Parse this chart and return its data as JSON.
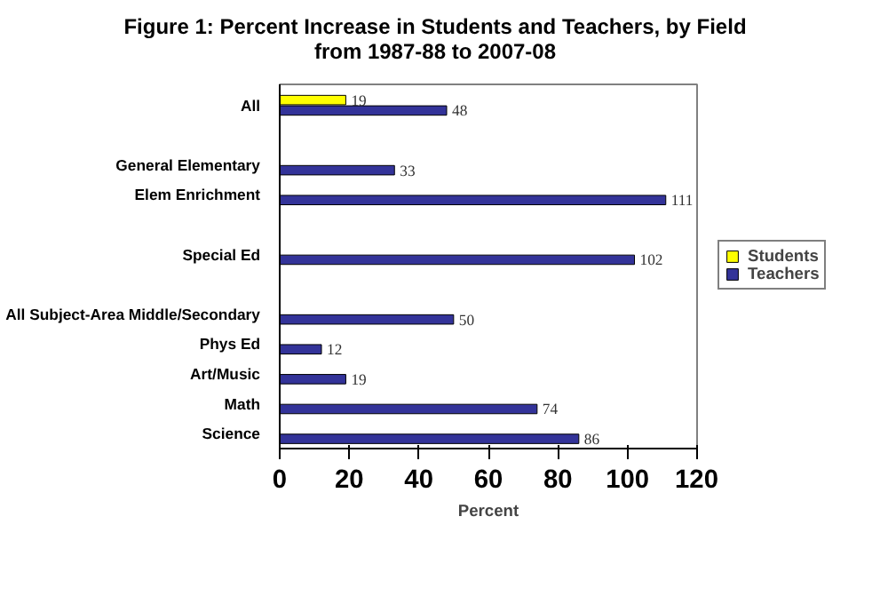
{
  "chart_data": {
    "type": "bar",
    "orientation": "horizontal",
    "title": "Figure 1: Percent Increase in Students and Teachers, by Field\nfrom 1987-88 to 2007-08",
    "xlabel": "Percent",
    "categories": [
      "All",
      null,
      "General Elementary",
      "Elem Enrichment",
      null,
      "Special Ed",
      null,
      "All Subject-Area Middle/Secondary",
      "Phys Ed",
      "Art/Music",
      "Math",
      "Science"
    ],
    "series": [
      {
        "name": "Students",
        "color": "#ffff00",
        "values": [
          19,
          null,
          null,
          null,
          null,
          null,
          null,
          null,
          null,
          null,
          null,
          null
        ]
      },
      {
        "name": "Teachers",
        "color": "#333399",
        "values": [
          48,
          null,
          33,
          111,
          null,
          102,
          null,
          50,
          12,
          19,
          74,
          86
        ]
      }
    ],
    "xlim": [
      0,
      120
    ],
    "xticks": [
      0,
      20,
      40,
      60,
      80,
      100,
      120
    ],
    "data_labels": true,
    "grid": false,
    "legend": "right"
  }
}
